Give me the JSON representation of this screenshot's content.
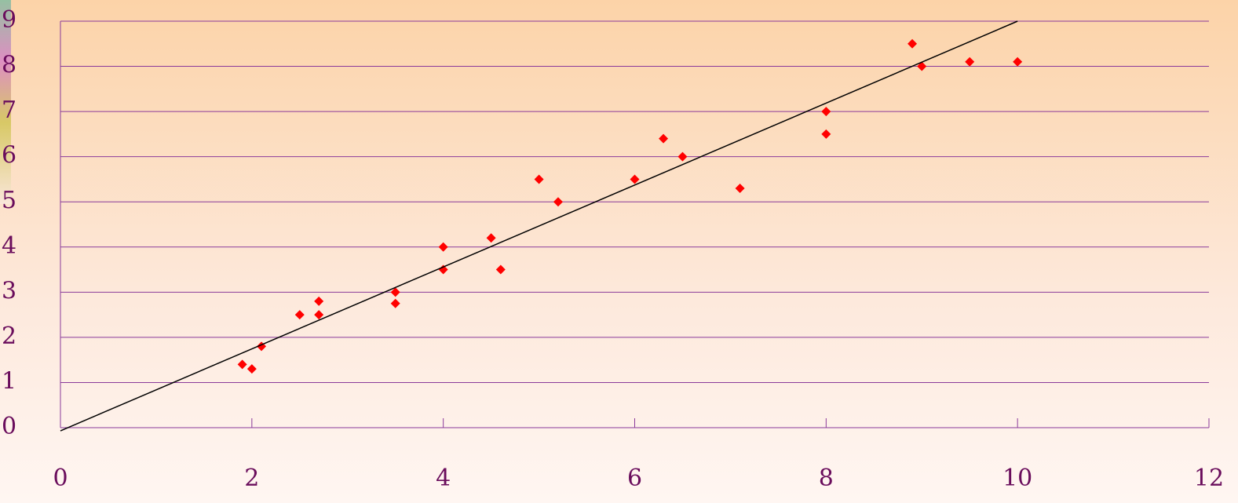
{
  "chart_data": {
    "type": "scatter",
    "xlim": [
      0,
      12
    ],
    "ylim": [
      0,
      9
    ],
    "xticks": [
      0,
      2,
      4,
      6,
      8,
      10,
      12
    ],
    "yticks": [
      0,
      1,
      2,
      3,
      4,
      5,
      6,
      7,
      8,
      9
    ],
    "grid": true,
    "series": [
      {
        "color": "#ff0000",
        "marker": "diamond",
        "x": [
          1.9,
          2.0,
          2.1,
          2.5,
          2.7,
          2.7,
          3.5,
          3.5,
          4.0,
          4.0,
          4.5,
          4.6,
          5.0,
          5.2,
          6.0,
          6.3,
          6.5,
          7.1,
          8.0,
          8.0,
          8.9,
          9.0,
          9.5,
          10.0
        ],
        "values": [
          1.4,
          1.3,
          1.8,
          2.5,
          2.8,
          2.5,
          3.0,
          2.75,
          4.0,
          3.5,
          4.2,
          3.5,
          5.5,
          5.0,
          5.5,
          6.4,
          6.0,
          5.3,
          7.0,
          6.5,
          8.5,
          8.0,
          8.1,
          8.1
        ]
      },
      {
        "color": "#000000",
        "marker": "line",
        "x": [
          0,
          10
        ],
        "values": [
          -0.07,
          9.0
        ]
      }
    ]
  }
}
